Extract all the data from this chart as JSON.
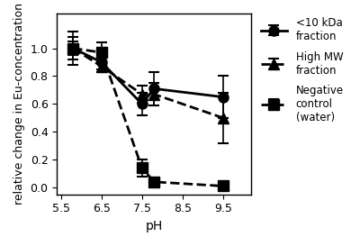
{
  "series": [
    {
      "label": "<10 kDa\nfraction",
      "x": [
        5.8,
        6.5,
        7.5,
        7.8,
        9.5
      ],
      "y": [
        1.0,
        0.9,
        0.6,
        0.71,
        0.65
      ],
      "yerr": [
        0.08,
        0.05,
        0.08,
        0.12,
        0.15
      ],
      "marker": "o",
      "linestyle": "-",
      "linewidth": 2.0,
      "markersize": 8,
      "color": "black"
    },
    {
      "label": "High MW\nfraction",
      "x": [
        5.8,
        6.5,
        7.5,
        7.8,
        9.5
      ],
      "y": [
        1.0,
        0.87,
        0.67,
        0.67,
        0.5
      ],
      "yerr": [
        0.05,
        0.04,
        0.06,
        0.08,
        0.18
      ],
      "marker": "^",
      "linestyle": "--",
      "linewidth": 2.0,
      "markersize": 8,
      "color": "black"
    },
    {
      "label": "Negative\ncontrol\n(water)",
      "x": [
        5.8,
        6.5,
        7.5,
        7.8,
        9.5
      ],
      "y": [
        1.0,
        0.97,
        0.14,
        0.04,
        0.01
      ],
      "yerr": [
        0.12,
        0.07,
        0.06,
        0.03,
        0.01
      ],
      "marker": "s",
      "linestyle": "--",
      "linewidth": 2.0,
      "markersize": 8,
      "color": "black"
    }
  ],
  "xlabel": "pH",
  "ylabel": "relative change in Eu-concentration",
  "xlim": [
    5.4,
    10.2
  ],
  "ylim": [
    -0.05,
    1.25
  ],
  "xticks": [
    5.5,
    6.5,
    7.5,
    8.5,
    9.5
  ],
  "yticks": [
    0.0,
    0.2,
    0.4,
    0.6,
    0.8,
    1.0
  ],
  "background_color": "white",
  "legend_fontsize": 8.5,
  "axis_fontsize": 10,
  "tick_fontsize": 9
}
